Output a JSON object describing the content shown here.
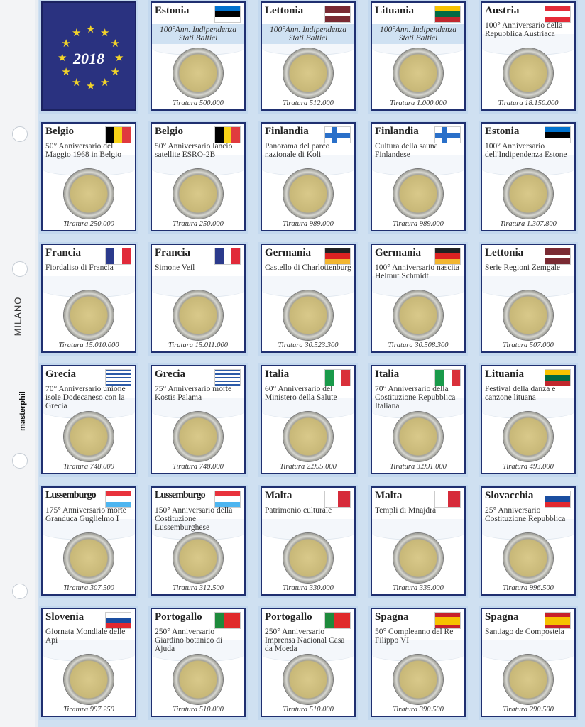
{
  "binder": {
    "brand_text": "MILANO",
    "logo_text": "masterphil"
  },
  "cover": {
    "year": "2018",
    "stars_color": "#f3d42a",
    "background": "#2a3280"
  },
  "cards": [
    {
      "country": "Estonia",
      "desc": "100°Ann. Indipendenza Stati Baltici",
      "highlight": true,
      "tiratura": "Tiratura 500.000",
      "flag": {
        "dir": "h",
        "colors": [
          "#0072ce",
          "#000000",
          "#ffffff"
        ]
      }
    },
    {
      "country": "Lettonia",
      "desc": "100°Ann. Indipendenza Stati Baltici",
      "highlight": true,
      "tiratura": "Tiratura 512.000",
      "flag": {
        "dir": "h",
        "colors": [
          "#7a2a33",
          "#7a2a33",
          "#ffffff",
          "#7a2a33",
          "#7a2a33"
        ]
      }
    },
    {
      "country": "Lituania",
      "desc": "100°Ann. Indipendenza Stati Baltici",
      "highlight": true,
      "tiratura": "Tiratura 1.000.000",
      "flag": {
        "dir": "h",
        "colors": [
          "#f8c300",
          "#006a44",
          "#c1272d"
        ]
      }
    },
    {
      "country": "Austria",
      "desc": "100° Anniversario della Repubblica Austriaca",
      "tiratura": "Tiratura 18.150.000",
      "flag": {
        "dir": "h",
        "colors": [
          "#e52b38",
          "#ffffff",
          "#e52b38"
        ]
      }
    },
    {
      "country": "Belgio",
      "desc": "50° Anniversario del Maggio 1968 in Belgio",
      "tiratura": "Tiratura 250.000",
      "flag": {
        "dir": "v",
        "colors": [
          "#000000",
          "#f7d117",
          "#e03a3e"
        ]
      }
    },
    {
      "country": "Belgio",
      "desc": "50° Anniversario lancio satellite ESRO-2B",
      "tiratura": "Tiratura 250.000",
      "flag": {
        "dir": "v",
        "colors": [
          "#000000",
          "#f7d117",
          "#e03a3e"
        ]
      }
    },
    {
      "country": "Finlandia",
      "desc": "Panorama del parco nazionale di Koli",
      "tiratura": "Tiratura 989.000",
      "flag": {
        "type": "nordic",
        "colors": [
          "#ffffff",
          "#2a70c9"
        ]
      }
    },
    {
      "country": "Finlandia",
      "desc": "Cultura della sauna Finlandese",
      "tiratura": "Tiratura 989.000",
      "flag": {
        "type": "nordic",
        "colors": [
          "#ffffff",
          "#2a70c9"
        ]
      }
    },
    {
      "country": "Estonia",
      "desc": "100° Anniversario dell'Indipendenza Estone",
      "tiratura": "Tiratura 1.307.800",
      "flag": {
        "dir": "h",
        "colors": [
          "#0072ce",
          "#000000",
          "#ffffff"
        ]
      }
    },
    {
      "country": "Francia",
      "desc": "Fiordaliso di Francia",
      "tiratura": "Tiratura 15.010.000",
      "flag": {
        "dir": "v",
        "colors": [
          "#2b3a8c",
          "#ffffff",
          "#e12a3a"
        ]
      }
    },
    {
      "country": "Francia",
      "desc": "Simone Veil",
      "tiratura": "Tiratura 15.011.000",
      "flag": {
        "dir": "v",
        "colors": [
          "#2b3a8c",
          "#ffffff",
          "#e12a3a"
        ]
      }
    },
    {
      "country": "Germania",
      "desc": "Castello di Charlottenburg",
      "tiratura": "Tiratura 30.523.300",
      "flag": {
        "dir": "h",
        "colors": [
          "#222222",
          "#dd2222",
          "#f2b631"
        ]
      }
    },
    {
      "country": "Germania",
      "desc": "100° Anniversario nascita Helmut Schmidt",
      "tiratura": "Tiratura 30.508.300",
      "flag": {
        "dir": "h",
        "colors": [
          "#222222",
          "#dd2222",
          "#f2b631"
        ]
      }
    },
    {
      "country": "Lettonia",
      "desc": "Serie Regioni Zemgale",
      "tiratura": "Tiratura 507.000",
      "flag": {
        "dir": "h",
        "colors": [
          "#7a2a33",
          "#7a2a33",
          "#ffffff",
          "#7a2a33",
          "#7a2a33"
        ]
      }
    },
    {
      "country": "Grecia",
      "desc": "70° Anniversario unione isole Dodecaneso con la Grecia",
      "tiratura": "Tiratura 748.000",
      "flag": {
        "dir": "h",
        "colors": [
          "#2c5aa8",
          "#ffffff",
          "#2c5aa8",
          "#ffffff",
          "#2c5aa8",
          "#ffffff",
          "#2c5aa8",
          "#ffffff",
          "#2c5aa8"
        ]
      }
    },
    {
      "country": "Grecia",
      "desc": "75° Anniversario morte Kostis Palama",
      "tiratura": "Tiratura 748.000",
      "flag": {
        "dir": "h",
        "colors": [
          "#2c5aa8",
          "#ffffff",
          "#2c5aa8",
          "#ffffff",
          "#2c5aa8",
          "#ffffff",
          "#2c5aa8",
          "#ffffff",
          "#2c5aa8"
        ]
      }
    },
    {
      "country": "Italia",
      "desc": "60° Anniversario del Ministero della Salute",
      "tiratura": "Tiratura 2.995.000",
      "flag": {
        "dir": "v",
        "colors": [
          "#199a4a",
          "#ffffff",
          "#d9303a"
        ]
      }
    },
    {
      "country": "Italia",
      "desc": "70° Anniversario della Costituzione Repubblica Italiana",
      "tiratura": "Tiratura 3.991.000",
      "flag": {
        "dir": "v",
        "colors": [
          "#199a4a",
          "#ffffff",
          "#d9303a"
        ]
      }
    },
    {
      "country": "Lituania",
      "desc": "Festival della danza e canzone lituana",
      "tiratura": "Tiratura 493.000",
      "flag": {
        "dir": "h",
        "colors": [
          "#f8c300",
          "#006a44",
          "#c1272d"
        ]
      }
    },
    {
      "country": "Lussemburgo",
      "desc": "175° Anniversario morte Granduca Guglielmo I",
      "tiratura": "Tiratura 307.500",
      "flag": {
        "dir": "h",
        "colors": [
          "#e8323c",
          "#ffffff",
          "#4db5f0"
        ]
      }
    },
    {
      "country": "Lussemburgo",
      "desc": "150° Anniversario della Costituzione Lussemburghese",
      "tiratura": "Tiratura 312.500",
      "flag": {
        "dir": "h",
        "colors": [
          "#e8323c",
          "#ffffff",
          "#4db5f0"
        ]
      }
    },
    {
      "country": "Malta",
      "desc": "Patrimonio culturale",
      "tiratura": "Tiratura 330.000",
      "flag": {
        "dir": "v",
        "colors": [
          "#ffffff",
          "#d62b3a"
        ]
      }
    },
    {
      "country": "Malta",
      "desc": "Templi di Mnajdra",
      "tiratura": "Tiratura 335.000",
      "flag": {
        "dir": "v",
        "colors": [
          "#ffffff",
          "#d62b3a"
        ]
      }
    },
    {
      "country": "Slovacchia",
      "desc": "25° Anniversario Costituzione Repubblica",
      "tiratura": "Tiratura 996.500",
      "flag": {
        "dir": "h",
        "colors": [
          "#ffffff",
          "#1a4ea0",
          "#e2282f"
        ]
      }
    },
    {
      "country": "Slovenia",
      "desc": "Giornata Mondiale delle Api",
      "tiratura": "Tiratura 997.250",
      "flag": {
        "dir": "h",
        "colors": [
          "#ffffff",
          "#1a4ea0",
          "#e2282f"
        ]
      }
    },
    {
      "country": "Portogallo",
      "desc": "250° Anniversario Giardino botanico di Ajuda",
      "tiratura": "Tiratura 510.000",
      "flag": {
        "dir": "v",
        "colors": [
          "#1e8a3c",
          "#e02a2a",
          "#e02a2a"
        ]
      }
    },
    {
      "country": "Portogallo",
      "desc": "250° Anniversario Imprensa Nacional Casa da Moeda",
      "tiratura": "Tiratura 510.000",
      "flag": {
        "dir": "v",
        "colors": [
          "#1e8a3c",
          "#e02a2a",
          "#e02a2a"
        ]
      }
    },
    {
      "country": "Spagna",
      "desc": "50° Compleanno del Re Filippo VI",
      "tiratura": "Tiratura 390.500",
      "flag": {
        "dir": "h",
        "colors": [
          "#c8202a",
          "#f6c100",
          "#f6c100",
          "#c8202a"
        ]
      }
    },
    {
      "country": "Spagna",
      "desc": "Santiago de Compostela",
      "tiratura": "Tiratura 290.500",
      "flag": {
        "dir": "h",
        "colors": [
          "#c8202a",
          "#f6c100",
          "#f6c100",
          "#c8202a"
        ]
      }
    }
  ]
}
